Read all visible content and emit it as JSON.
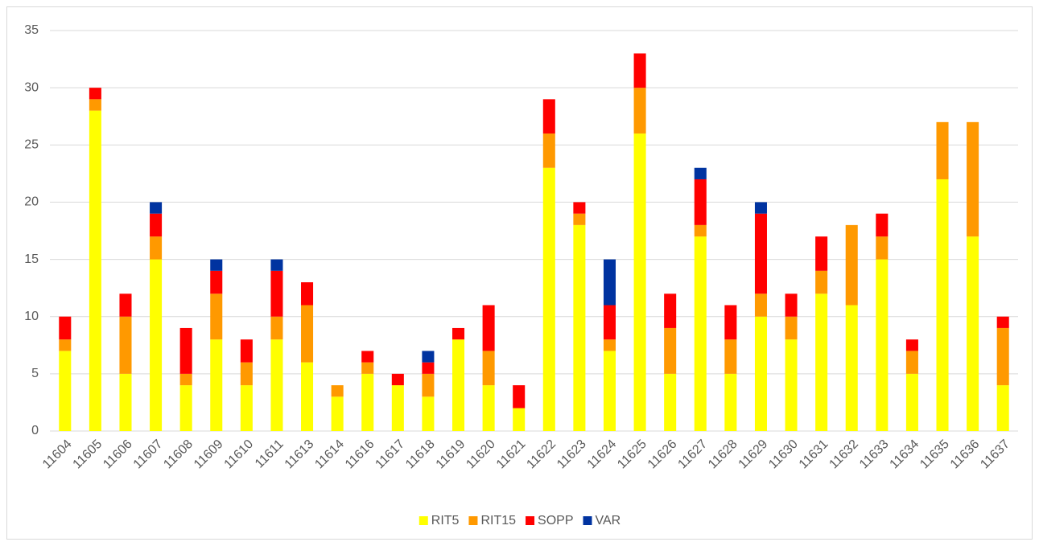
{
  "chart_data": {
    "type": "stacked-bar",
    "categories": [
      "11604",
      "11605",
      "11606",
      "11607",
      "11608",
      "11609",
      "11610",
      "11611",
      "11613",
      "11614",
      "11616",
      "11617",
      "11618",
      "11619",
      "11620",
      "11621",
      "11622",
      "11623",
      "11624",
      "11625",
      "11626",
      "11627",
      "11628",
      "11629",
      "11630",
      "11631",
      "11632",
      "11633",
      "11634",
      "11635",
      "11636",
      "11637"
    ],
    "series": [
      {
        "name": "RIT5",
        "color": "#ffff00",
        "values": [
          7,
          28,
          5,
          15,
          4,
          8,
          4,
          8,
          6,
          3,
          5,
          4,
          3,
          8,
          4,
          2,
          23,
          18,
          7,
          26,
          5,
          17,
          5,
          10,
          8,
          12,
          11,
          15,
          5,
          22,
          17,
          4
        ]
      },
      {
        "name": "RIT15",
        "color": "#ff9900",
        "values": [
          1,
          1,
          5,
          2,
          1,
          4,
          2,
          2,
          5,
          1,
          1,
          0,
          2,
          0,
          3,
          0,
          3,
          1,
          1,
          4,
          4,
          1,
          3,
          2,
          2,
          2,
          7,
          2,
          2,
          5,
          10,
          5
        ]
      },
      {
        "name": "SOPP",
        "color": "#ff0000",
        "values": [
          2,
          1,
          2,
          2,
          4,
          2,
          2,
          4,
          2,
          0,
          1,
          1,
          1,
          1,
          4,
          2,
          3,
          1,
          3,
          3,
          3,
          4,
          3,
          7,
          2,
          3,
          0,
          2,
          1,
          0,
          0,
          1
        ]
      },
      {
        "name": "VAR",
        "color": "#0033a0",
        "values": [
          0,
          0,
          0,
          1,
          0,
          1,
          0,
          1,
          0,
          0,
          0,
          0,
          1,
          0,
          0,
          0,
          0,
          0,
          4,
          0,
          0,
          1,
          0,
          1,
          0,
          0,
          0,
          0,
          0,
          0,
          0,
          0
        ]
      }
    ],
    "ylim": [
      0,
      35
    ],
    "yticks": [
      0,
      5,
      10,
      15,
      20,
      25,
      30,
      35
    ],
    "grid": true,
    "legend": "bottom"
  }
}
